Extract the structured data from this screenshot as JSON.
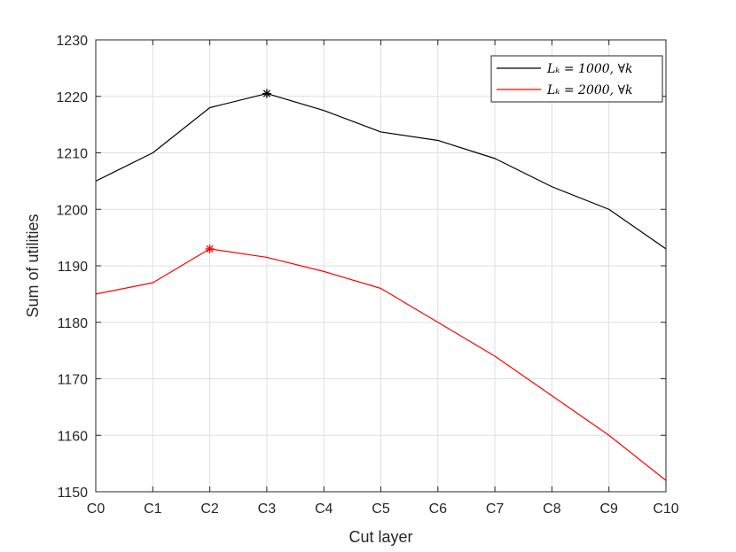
{
  "chart_data": {
    "type": "line",
    "categories": [
      "C0",
      "C1",
      "C2",
      "C3",
      "C4",
      "C5",
      "C6",
      "C7",
      "C8",
      "C9",
      "C10"
    ],
    "xlabel": "Cut layer",
    "ylabel": "Sum of utilities",
    "ylim": [
      1150,
      1230
    ],
    "yticks": [
      1150,
      1160,
      1170,
      1180,
      1190,
      1200,
      1210,
      1220,
      1230
    ],
    "grid": true,
    "legend_position": "top-right",
    "series": [
      {
        "name": "L_k = 1000, ∀k",
        "legend_label": "Lₖ = 1000, ∀k",
        "color": "#000000",
        "values": [
          1205,
          1210,
          1218,
          1220.5,
          1217.5,
          1213.7,
          1212.2,
          1209,
          1204,
          1200,
          1193
        ],
        "max_marker_index": 3
      },
      {
        "name": "L_k = 2000, ∀k",
        "legend_label": "Lₖ = 2000, ∀k",
        "color": "#ff0000",
        "values": [
          1185,
          1187,
          1193,
          1191.5,
          1189,
          1186,
          1180,
          1174,
          1167,
          1160,
          1152
        ],
        "max_marker_index": 2
      }
    ]
  }
}
